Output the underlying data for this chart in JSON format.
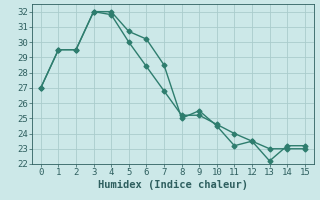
{
  "title": "",
  "xlabel": "Humidex (Indice chaleur)",
  "xlim": [
    -0.5,
    15.5
  ],
  "ylim": [
    22,
    32.5
  ],
  "yticks": [
    22,
    23,
    24,
    25,
    26,
    27,
    28,
    29,
    30,
    31,
    32
  ],
  "xticks": [
    0,
    1,
    2,
    3,
    4,
    5,
    6,
    7,
    8,
    9,
    10,
    11,
    12,
    13,
    14,
    15
  ],
  "line1_x": [
    0,
    1,
    2,
    3,
    4,
    5,
    6,
    7,
    8,
    9,
    10,
    11,
    12,
    13,
    14,
    15
  ],
  "line1_y": [
    27,
    29.5,
    29.5,
    32,
    32,
    30.7,
    30.2,
    28.5,
    25.0,
    25.5,
    24.5,
    23.2,
    23.5,
    22.2,
    23.2,
    23.2
  ],
  "line2_x": [
    0,
    1,
    2,
    3,
    4,
    5,
    6,
    7,
    8,
    9,
    10,
    11,
    12,
    13,
    14,
    15
  ],
  "line2_y": [
    27,
    29.5,
    29.5,
    32,
    31.8,
    30.0,
    28.4,
    26.8,
    25.2,
    25.2,
    24.6,
    24.0,
    23.5,
    23.0,
    23.0,
    23.0
  ],
  "line_color": "#2e7d6e",
  "bg_color": "#cce8e8",
  "grid_color": "#aacccc",
  "font_color": "#2e5f5f",
  "marker": "D",
  "markersize": 2.5,
  "linewidth": 1.0,
  "font_family": "monospace",
  "xlabel_fontsize": 7.5,
  "tick_fontsize": 6.5
}
